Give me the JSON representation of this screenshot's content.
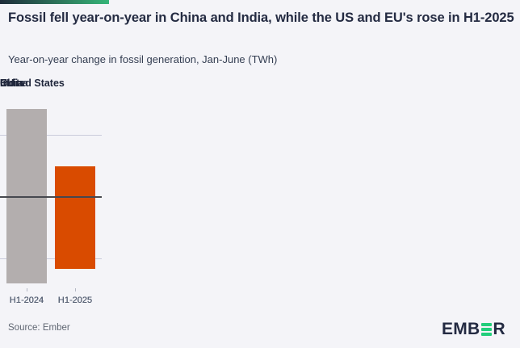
{
  "header": {
    "title": "Fossil fell year-on-year in China and India, while the US and EU's rose in H1-2025",
    "subtitle": "Year-on-year change in fossil generation, Jan-June (TWh)"
  },
  "footer": {
    "source": "Source: Ember",
    "logo_prefix": "EMB",
    "logo_suffix": "R"
  },
  "colors": {
    "background": "#f4f4f8",
    "bar_2024_gray": "#b3aeae",
    "bar_2025_orange": "#d94b00",
    "title_navy": "#242b42",
    "axis_text": "#5a6477",
    "gridline": "#caccdb",
    "zero_line": "#46484f",
    "logo_green": "#22ce7b",
    "topbar_gradient_start": "#1e2c3a",
    "topbar_gradient_end": "#35b578"
  },
  "chart_data": {
    "type": "bar",
    "title": "Fossil fell year-on-year in China and India, while the US and EU's rose in H1-2025",
    "subtitle": "Year-on-year change in fossil generation, Jan-June (TWh)",
    "unit": "TWh",
    "categories": [
      "H1-2024",
      "H1-2025"
    ],
    "series_colors": [
      "#b3aeae",
      "#d94b00"
    ],
    "panels": [
      {
        "title": "China",
        "values": [
          54,
          -58
        ]
      },
      {
        "title": "India",
        "values": [
          71,
          -29
        ]
      },
      {
        "title": "United States",
        "values": [
          46,
          18
        ]
      },
      {
        "title": "EU",
        "values": [
          -70,
          25
        ]
      }
    ],
    "yticks": [
      50,
      0,
      -50
    ],
    "ylim": [
      -80,
      86
    ],
    "grid": "horizontal gridlines at 50 and -50, dark zero baseline",
    "legend": "none",
    "ylabel": "",
    "xlabel": ""
  }
}
